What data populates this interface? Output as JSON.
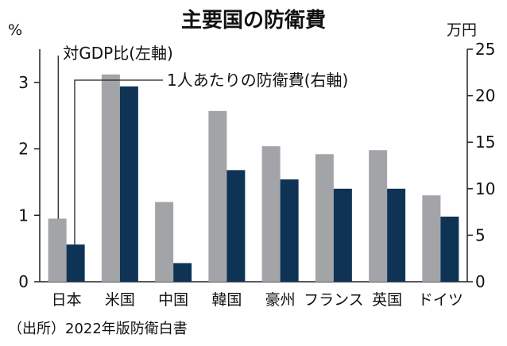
{
  "chart_data": {
    "type": "bar",
    "title": "主要国の防衛費",
    "categories": [
      "日本",
      "米国",
      "中国",
      "韓国",
      "豪州",
      "フランス",
      "英国",
      "ドイツ"
    ],
    "series": [
      {
        "name": "対GDP比(左軸)",
        "axis": "left",
        "color": "#a3a4a8",
        "values": [
          0.95,
          3.12,
          1.2,
          2.57,
          2.04,
          1.92,
          1.98,
          1.3
        ]
      },
      {
        "name": "1人あたりの防衛費(右軸)",
        "axis": "right",
        "color": "#0f3355",
        "values": [
          4.0,
          21.0,
          2.0,
          12.0,
          11.0,
          10.0,
          10.0,
          7.0
        ]
      }
    ],
    "left_axis": {
      "unit": "%",
      "ylim": [
        0,
        3.5
      ],
      "ticks": [
        0,
        1,
        2,
        3
      ]
    },
    "right_axis": {
      "unit": "万円",
      "ylim": [
        0,
        25
      ],
      "ticks": [
        0,
        5,
        10,
        15,
        20,
        25
      ]
    },
    "source": "（出所）2022年版防衛白書",
    "grid": false
  }
}
